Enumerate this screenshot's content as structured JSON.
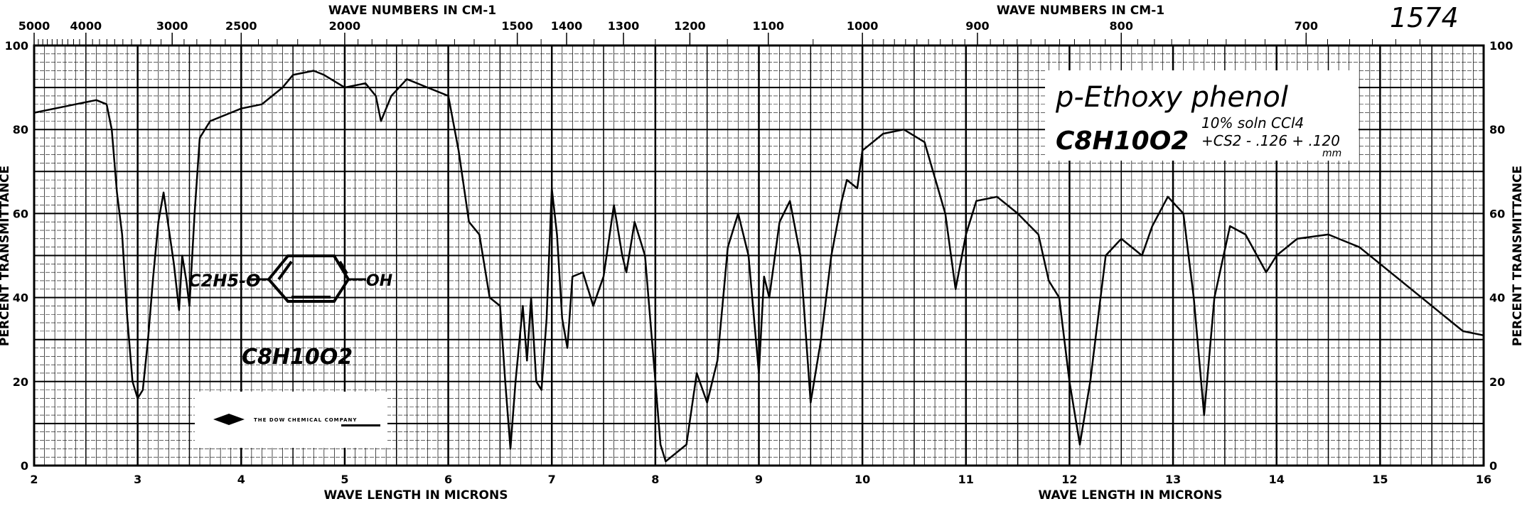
{
  "chart_data": {
    "type": "line",
    "title": "p-Ethoxy phenol",
    "formula": "C8H10O2",
    "sample_note_line1": "10% soln CCl4",
    "sample_note_line2": "+CS2 - .126 + .120",
    "sample_note_unit": "mm",
    "spectrum_number": "1574",
    "structure_drawing": {
      "left_group": "C2H5-O",
      "right_group": "OH",
      "formula": "C8H10O2"
    },
    "logo_text": "THE DOW CHEMICAL COMPANY",
    "xlabel_bottom": "WAVE LENGTH IN MICRONS",
    "xlabel_top": "WAVE NUMBERS IN CM-1",
    "ylabel_left": "PERCENT TRANSMITTANCE",
    "ylabel_right": "PERCENT TRANSMITTANCE",
    "xlim": [
      2,
      16
    ],
    "ylim": [
      0,
      100
    ],
    "x_ticks": [
      "2",
      "3",
      "4",
      "5",
      "6",
      "7",
      "8",
      "9",
      "10",
      "11",
      "12",
      "13",
      "14",
      "15",
      "16"
    ],
    "y_ticks": [
      "0",
      "20",
      "40",
      "60",
      "80",
      "100"
    ],
    "top_ticks": [
      {
        "label": "5000",
        "value": 5000
      },
      {
        "label": "4000",
        "value": 4000
      },
      {
        "label": "3000",
        "value": 3000
      },
      {
        "label": "2500",
        "value": 2500
      },
      {
        "label": "2000",
        "value": 2000
      },
      {
        "label": "1500",
        "value": 1500
      },
      {
        "label": "1400",
        "value": 1400
      },
      {
        "label": "1300",
        "value": 1300
      },
      {
        "label": "1200",
        "value": 1200
      },
      {
        "label": "1100",
        "value": 1100
      },
      {
        "label": "1000",
        "value": 1000
      },
      {
        "label": "900",
        "value": 900
      },
      {
        "label": "800",
        "value": 800
      },
      {
        "label": "700",
        "value": 700
      }
    ],
    "grid": true,
    "series": [
      {
        "x": [
          2.0,
          2.2,
          2.4,
          2.6,
          2.7,
          2.75,
          2.8,
          2.85,
          2.9,
          2.95,
          3.0,
          3.05,
          3.1,
          3.15,
          3.2,
          3.25,
          3.35,
          3.4,
          3.43,
          3.47,
          3.5,
          3.55,
          3.6,
          3.7,
          3.9,
          4.0,
          4.2,
          4.4,
          4.5,
          4.7,
          4.8,
          5.0,
          5.2,
          5.3,
          5.35,
          5.45,
          5.6,
          5.8,
          6.0,
          6.1,
          6.2,
          6.3,
          6.4,
          6.5,
          6.55,
          6.6,
          6.65,
          6.72,
          6.76,
          6.8,
          6.85,
          6.9,
          6.95,
          7.0,
          7.05,
          7.1,
          7.15,
          7.2,
          7.3,
          7.4,
          7.5,
          7.6,
          7.68,
          7.72,
          7.8,
          7.9,
          8.0,
          8.05,
          8.1,
          8.2,
          8.3,
          8.4,
          8.5,
          8.6,
          8.7,
          8.8,
          8.9,
          9.0,
          9.05,
          9.1,
          9.2,
          9.3,
          9.4,
          9.5,
          9.6,
          9.7,
          9.8,
          9.85,
          9.95,
          10.0,
          10.2,
          10.4,
          10.6,
          10.8,
          10.9,
          11.0,
          11.1,
          11.3,
          11.5,
          11.7,
          11.8,
          11.9,
          12.0,
          12.1,
          12.2,
          12.35,
          12.5,
          12.7,
          12.8,
          12.95,
          13.1,
          13.2,
          13.3,
          13.4,
          13.55,
          13.7,
          13.9,
          14.0,
          14.2,
          14.5,
          14.8,
          15.0,
          15.3,
          15.6,
          15.8,
          16.0
        ],
        "y": [
          84,
          85,
          86,
          87,
          86,
          80,
          65,
          55,
          35,
          20,
          16,
          18,
          30,
          45,
          58,
          65,
          48,
          37,
          50,
          44,
          38,
          60,
          78,
          82,
          84,
          85,
          86,
          90,
          93,
          94,
          93,
          90,
          91,
          88,
          82,
          88,
          92,
          90,
          88,
          75,
          58,
          55,
          40,
          38,
          20,
          4,
          20,
          38,
          25,
          40,
          20,
          18,
          35,
          66,
          55,
          35,
          28,
          45,
          46,
          38,
          45,
          62,
          50,
          46,
          58,
          50,
          20,
          5,
          1,
          3,
          5,
          22,
          15,
          25,
          52,
          60,
          50,
          22,
          45,
          40,
          58,
          63,
          50,
          15,
          30,
          50,
          63,
          68,
          66,
          75,
          79,
          80,
          77,
          60,
          42,
          55,
          63,
          64,
          60,
          55,
          44,
          40,
          20,
          5,
          20,
          50,
          54,
          50,
          57,
          64,
          60,
          40,
          12,
          40,
          57,
          55,
          46,
          50,
          54,
          55,
          52,
          48,
          42,
          36,
          32,
          31
        ]
      }
    ]
  }
}
